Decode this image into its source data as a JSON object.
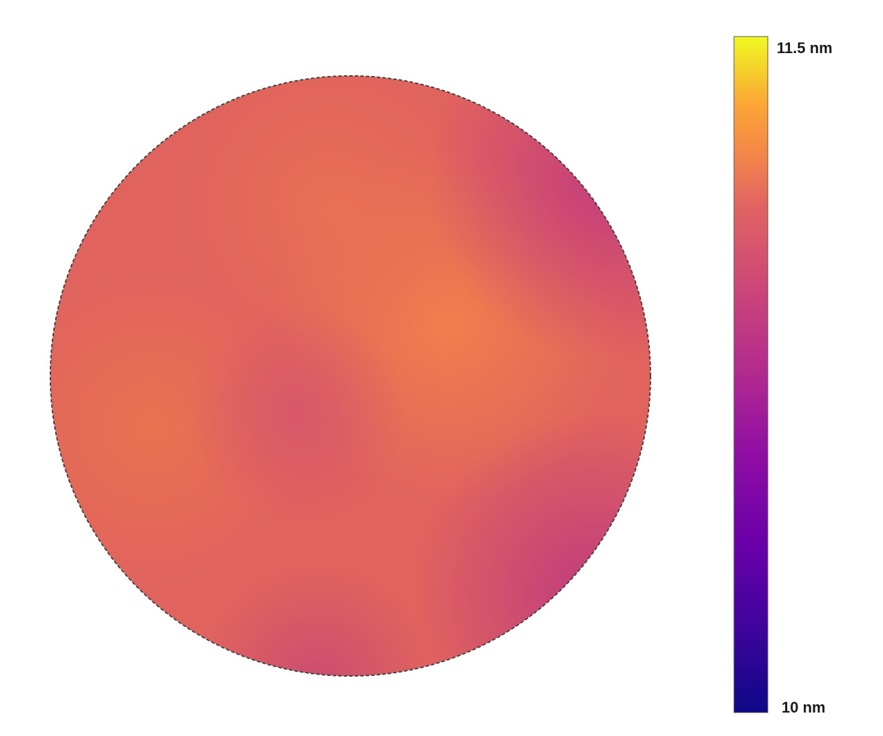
{
  "chart_data": {
    "type": "heatmap",
    "title": "",
    "colorscale": "plasma",
    "colorbar": {
      "min": 10,
      "max": 11.5,
      "unit": "nm",
      "max_label": "11.5 nm",
      "min_label": "10 nm"
    },
    "wafer_outline": "dashed",
    "value_range_observed_nm": [
      10.7,
      11.1
    ]
  }
}
